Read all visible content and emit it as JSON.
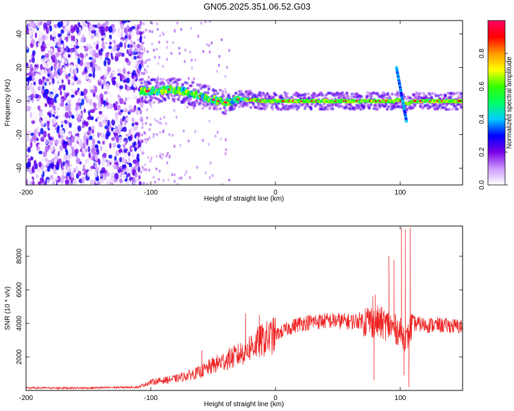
{
  "title": "GN05.2025.351.06.52.G03",
  "chart_data": [
    {
      "type": "heatmap",
      "xlabel": "Height of straight line (km)",
      "ylabel": "Frequency (Hz)",
      "xlim": [
        -200,
        150
      ],
      "ylim": [
        -50,
        48
      ],
      "xticks": [
        -200,
        -100,
        0,
        100
      ],
      "yticks": [
        -40,
        -20,
        0,
        20,
        40
      ],
      "colorbar": {
        "label": "Normalized spectral amplitude",
        "range": [
          0,
          1
        ],
        "ticks": [
          "0.0",
          "0.2",
          "0.4",
          "0.6",
          "0.8"
        ],
        "colors": [
          "#ffffff",
          "#cc99ff",
          "#7a00e6",
          "#0000ff",
          "#00ccff",
          "#00ff66",
          "#33ff00",
          "#ffff00",
          "#ff9900",
          "#ff0000",
          "#ff0066"
        ]
      },
      "noise_region": {
        "x_from": -200,
        "x_to": -107
      },
      "ridge": [
        {
          "x": -108,
          "y": 6
        },
        {
          "x": -95,
          "y": 6
        },
        {
          "x": -85,
          "y": 7
        },
        {
          "x": -75,
          "y": 6
        },
        {
          "x": -65,
          "y": 4
        },
        {
          "x": -55,
          "y": 2
        },
        {
          "x": -45,
          "y": 0
        },
        {
          "x": -38,
          "y": -1
        },
        {
          "x": -30,
          "y": 1
        },
        {
          "x": -20,
          "y": 1
        },
        {
          "x": -10,
          "y": 0
        },
        {
          "x": 0,
          "y": 0
        },
        {
          "x": 20,
          "y": 0
        },
        {
          "x": 40,
          "y": 0
        },
        {
          "x": 60,
          "y": 0
        },
        {
          "x": 80,
          "y": 0
        },
        {
          "x": 95,
          "y": 0
        },
        {
          "x": 100,
          "y": 1
        },
        {
          "x": 104,
          "y": -2
        },
        {
          "x": 110,
          "y": 0
        },
        {
          "x": 130,
          "y": 0
        },
        {
          "x": 150,
          "y": 0
        }
      ],
      "hook": [
        {
          "x": 97,
          "y": 20
        },
        {
          "x": 99,
          "y": 12
        },
        {
          "x": 101,
          "y": 4
        },
        {
          "x": 103,
          "y": -4
        },
        {
          "x": 105,
          "y": -12
        }
      ]
    },
    {
      "type": "line",
      "xlabel": "Height of straight line (km)",
      "ylabel": "SNR (10 * v/v)",
      "xlim": [
        -200,
        150
      ],
      "ylim": [
        0,
        9800
      ],
      "xticks": [
        -200,
        -100,
        0,
        100
      ],
      "yticks": [
        2000,
        4000,
        6000,
        8000
      ],
      "color": "#ee2222",
      "series": [
        {
          "name": "SNR",
          "x": [
            -200,
            -150,
            -110,
            -100,
            -90,
            -80,
            -70,
            -60,
            -50,
            -40,
            -30,
            -20,
            -10,
            0,
            10,
            20,
            30,
            40,
            50,
            60,
            70,
            80,
            90,
            95,
            100,
            105,
            110,
            120,
            130,
            140,
            150
          ],
          "y": [
            150,
            150,
            200,
            500,
            600,
            700,
            900,
            1100,
            1500,
            1800,
            2100,
            2600,
            3000,
            3300,
            3700,
            4000,
            4100,
            4150,
            4150,
            4100,
            4200,
            4100,
            3900,
            3700,
            3500,
            3000,
            4000,
            3900,
            3900,
            3850,
            3800
          ]
        }
      ],
      "spikes": [
        {
          "x": -59,
          "y": 2400
        },
        {
          "x": -24,
          "y": 4600
        },
        {
          "x": -13,
          "y": 4500
        },
        {
          "x": 78,
          "y": 5600
        },
        {
          "x": 80,
          "y": 5700
        },
        {
          "x": 91,
          "y": 8000
        },
        {
          "x": 95,
          "y": 7800
        },
        {
          "x": 101,
          "y": 9700
        },
        {
          "x": 104,
          "y": 9600
        },
        {
          "x": 108,
          "y": 9700
        }
      ],
      "dips": [
        {
          "x": 79,
          "y": 600
        },
        {
          "x": 103,
          "y": 900
        },
        {
          "x": 107,
          "y": 200
        }
      ]
    }
  ]
}
